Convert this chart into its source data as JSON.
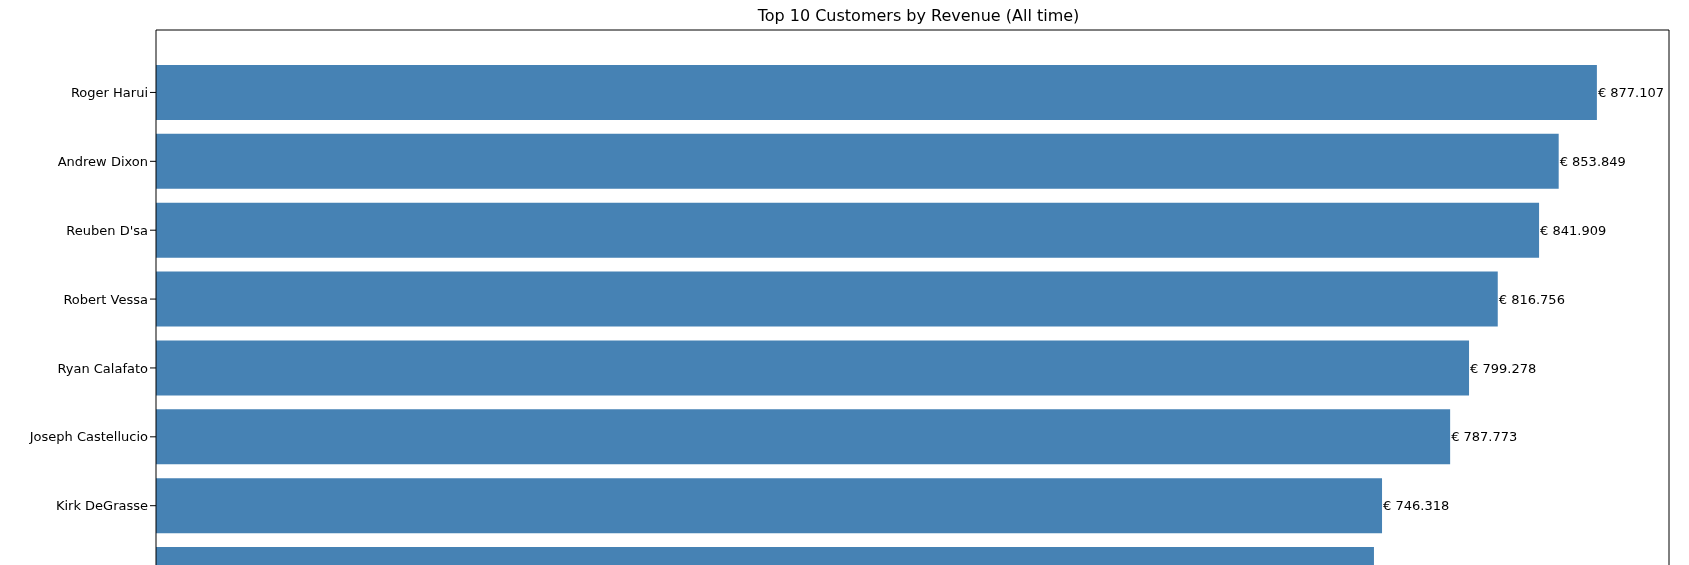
{
  "chart_data": {
    "type": "bar",
    "orientation": "horizontal",
    "title": "Top 10 Customers by Revenue (All time)",
    "categories": [
      "Roger Harui",
      "Andrew Dixon",
      "Reuben D'sa",
      "Robert Vessa",
      "Ryan Calafato",
      "Joseph Castellucio",
      "Kirk DeGrasse",
      null
    ],
    "values": [
      877107,
      853849,
      841909,
      816756,
      799278,
      787773,
      746318,
      741400
    ],
    "value_labels": [
      "€ 877.107",
      "€ 853.849",
      "€ 841.909",
      "€ 816.756",
      "€ 799.278",
      "€ 787.773",
      "€ 746.318",
      null
    ],
    "color": "#4682b4",
    "xlim": [
      0,
      921000
    ],
    "tick_labels": "y"
  }
}
